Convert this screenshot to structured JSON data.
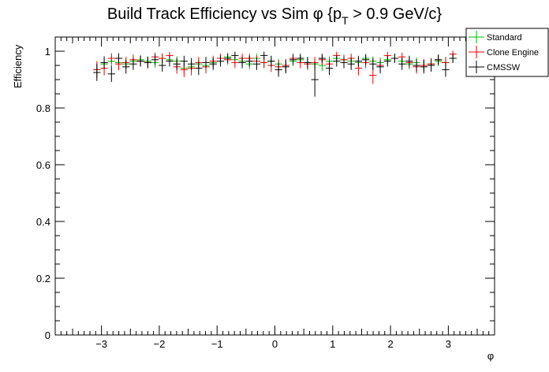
{
  "chart_data": {
    "type": "scatter",
    "title": "Build Track Efficiency vs Sim φ {p_T > 0.9 GeV/c}",
    "title_parts": {
      "prefix": "Build Track Efficiency vs Sim φ {p",
      "subscript": "T",
      "suffix": " > 0.9 GeV/c}"
    },
    "xlabel": "φ",
    "ylabel": "Efficiency",
    "xlim": [
      -3.8,
      3.8
    ],
    "ylim": [
      0,
      1.05
    ],
    "x_ticks": [
      -3,
      -2,
      -1,
      0,
      1,
      2,
      3
    ],
    "x_tick_labels": [
      "−3",
      "−2",
      "−1",
      "0",
      "1",
      "2",
      "3"
    ],
    "y_ticks": [
      0,
      0.2,
      0.4,
      0.6,
      0.8,
      1
    ],
    "y_tick_labels": [
      "0",
      "0.2",
      "0.4",
      "0.6",
      "0.8",
      "1"
    ],
    "grid": false,
    "legend_position": "top-right",
    "x_bin_half_width": 0.0628,
    "x": [
      -3.079,
      -2.953,
      -2.827,
      -2.702,
      -2.576,
      -2.45,
      -2.325,
      -2.199,
      -2.073,
      -1.948,
      -1.822,
      -1.696,
      -1.571,
      -1.445,
      -1.319,
      -1.194,
      -1.068,
      -0.942,
      -0.817,
      -0.691,
      -0.565,
      -0.44,
      -0.314,
      -0.188,
      -0.063,
      0.063,
      0.188,
      0.314,
      0.44,
      0.565,
      0.691,
      0.817,
      0.942,
      1.068,
      1.194,
      1.319,
      1.445,
      1.571,
      1.696,
      1.822,
      1.948,
      2.073,
      2.199,
      2.325,
      2.45,
      2.576,
      2.702,
      2.827,
      2.953,
      3.079
    ],
    "series": [
      {
        "name": "Standard",
        "color": "#00bb00",
        "values": [
          0.935,
          0.955,
          0.965,
          0.96,
          0.955,
          0.965,
          0.97,
          0.965,
          0.96,
          0.975,
          0.97,
          0.965,
          0.94,
          0.945,
          0.955,
          0.95,
          0.96,
          0.975,
          0.98,
          0.97,
          0.965,
          0.955,
          0.975,
          0.96,
          0.965,
          0.955,
          0.95,
          0.965,
          0.97,
          0.96,
          0.955,
          0.95,
          0.965,
          0.975,
          0.97,
          0.965,
          0.96,
          0.975,
          0.965,
          0.96,
          0.97,
          0.975,
          0.965,
          0.955,
          0.96,
          0.95,
          0.955,
          0.965,
          0.96,
          0.975
        ],
        "errors": [
          0.025,
          0.02,
          0.018,
          0.018,
          0.018,
          0.017,
          0.016,
          0.017,
          0.018,
          0.016,
          0.017,
          0.017,
          0.02,
          0.019,
          0.018,
          0.018,
          0.017,
          0.016,
          0.015,
          0.016,
          0.017,
          0.018,
          0.016,
          0.017,
          0.017,
          0.018,
          0.019,
          0.017,
          0.016,
          0.018,
          0.018,
          0.019,
          0.017,
          0.016,
          0.016,
          0.017,
          0.018,
          0.016,
          0.017,
          0.018,
          0.016,
          0.016,
          0.017,
          0.018,
          0.018,
          0.019,
          0.018,
          0.017,
          0.018,
          0.016
        ]
      },
      {
        "name": "Clone Engine",
        "color": "#ee0000",
        "values": [
          0.935,
          0.94,
          0.975,
          0.955,
          0.96,
          0.97,
          0.965,
          0.96,
          0.98,
          0.975,
          0.985,
          0.945,
          0.935,
          0.94,
          0.96,
          0.945,
          0.965,
          0.975,
          0.97,
          0.96,
          0.975,
          0.975,
          0.965,
          0.96,
          0.95,
          0.945,
          0.95,
          0.975,
          0.96,
          0.955,
          0.96,
          0.97,
          0.955,
          0.985,
          0.97,
          0.975,
          0.94,
          0.96,
          0.915,
          0.95,
          0.985,
          0.975,
          0.98,
          0.96,
          0.945,
          0.95,
          0.955,
          0.97,
          0.96,
          0.99
        ],
        "errors": [
          0.03,
          0.025,
          0.018,
          0.022,
          0.02,
          0.018,
          0.019,
          0.02,
          0.015,
          0.017,
          0.013,
          0.024,
          0.026,
          0.025,
          0.02,
          0.023,
          0.019,
          0.016,
          0.017,
          0.02,
          0.016,
          0.016,
          0.019,
          0.02,
          0.023,
          0.024,
          0.023,
          0.017,
          0.02,
          0.021,
          0.02,
          0.018,
          0.021,
          0.013,
          0.018,
          0.016,
          0.025,
          0.02,
          0.03,
          0.022,
          0.013,
          0.016,
          0.015,
          0.02,
          0.024,
          0.022,
          0.021,
          0.018,
          0.02,
          0.012
        ]
      },
      {
        "name": "CMSSW",
        "color": "#000000",
        "values": [
          0.925,
          0.96,
          0.92,
          0.975,
          0.945,
          0.955,
          0.965,
          0.96,
          0.97,
          0.95,
          0.965,
          0.955,
          0.965,
          0.955,
          0.94,
          0.96,
          0.955,
          0.965,
          0.975,
          0.985,
          0.96,
          0.965,
          0.955,
          0.985,
          0.965,
          0.935,
          0.945,
          0.97,
          0.975,
          0.96,
          0.9,
          0.975,
          0.94,
          0.965,
          0.96,
          0.955,
          0.965,
          0.97,
          0.955,
          0.945,
          0.965,
          0.975,
          0.955,
          0.965,
          0.95,
          0.945,
          0.95,
          0.97,
          0.935,
          0.975
        ],
        "errors": [
          0.03,
          0.022,
          0.028,
          0.018,
          0.024,
          0.021,
          0.019,
          0.02,
          0.018,
          0.022,
          0.019,
          0.021,
          0.019,
          0.021,
          0.024,
          0.02,
          0.021,
          0.019,
          0.016,
          0.013,
          0.02,
          0.019,
          0.021,
          0.013,
          0.019,
          0.025,
          0.023,
          0.018,
          0.016,
          0.02,
          0.06,
          0.016,
          0.024,
          0.019,
          0.02,
          0.021,
          0.019,
          0.018,
          0.021,
          0.023,
          0.019,
          0.016,
          0.021,
          0.019,
          0.022,
          0.023,
          0.022,
          0.018,
          0.025,
          0.016
        ]
      }
    ]
  }
}
